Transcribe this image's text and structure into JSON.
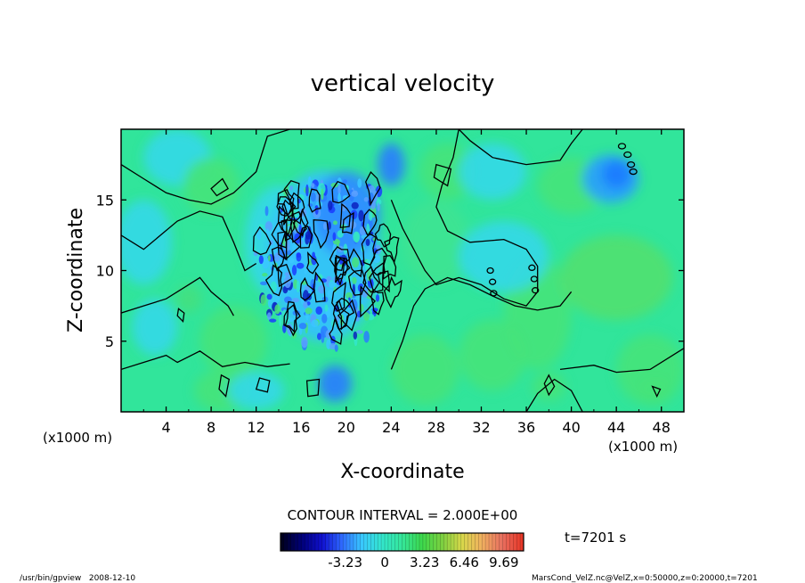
{
  "chart_data": {
    "type": "heatmap",
    "title": "vertical velocity",
    "xlabel": "X-coordinate",
    "ylabel": "Z-coordinate",
    "x_unit": "(x1000 m)",
    "z_unit": "(x1000 m)",
    "xlim": [
      0,
      50
    ],
    "ylim": [
      0,
      20
    ],
    "xticks": [
      4,
      8,
      12,
      16,
      20,
      24,
      28,
      32,
      36,
      40,
      44,
      48
    ],
    "yticks": [
      5,
      10,
      15
    ],
    "contour_interval_text": "CONTOUR INTERVAL = 2.000E+00",
    "time_text": "t=7201 s",
    "colorbar": {
      "tick_labels": [
        "-3.23",
        "0",
        "3.23",
        "6.46",
        "9.69"
      ],
      "tick_values": [
        -3.23,
        0,
        3.23,
        6.46,
        9.69
      ],
      "range": [
        -8.5,
        11.3
      ],
      "colors": [
        "#000020",
        "#00007a",
        "#1010d0",
        "#2f6bff",
        "#39c8ff",
        "#33e6cc",
        "#35e69a",
        "#3cd84c",
        "#7cd040",
        "#d8d84a",
        "#f0b060",
        "#e87060",
        "#e83828"
      ]
    }
  },
  "footer": {
    "left": "/usr/bin/gpview   2008-12-10",
    "right": "MarsCond_VelZ.nc@VelZ,x=0:50000,z=0:20000,t=7201"
  },
  "colors": {
    "background_field": "#31e59b",
    "green_region": "#46e37a",
    "cyan_region": "#33d8e8",
    "blue_region": "#2a7cff",
    "contour_line": "#000000"
  }
}
